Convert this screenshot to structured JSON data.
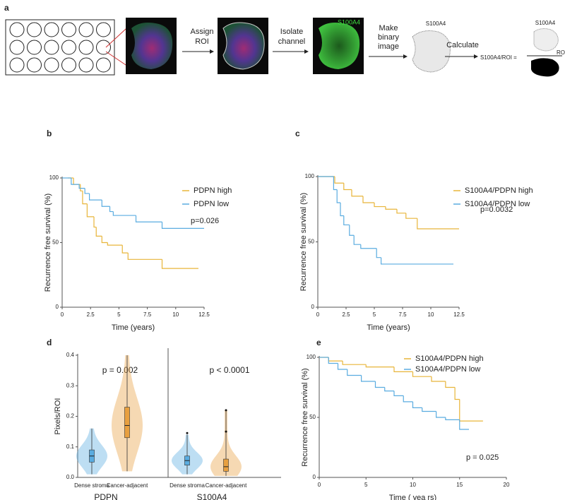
{
  "panel_a": {
    "label": "a",
    "steps": [
      [
        "Assign",
        "ROI"
      ],
      [
        "Isolate",
        "channel"
      ],
      [
        "Make",
        "binary",
        "image"
      ],
      [
        "Calculate"
      ]
    ],
    "channel_label": "S100A4",
    "binary_label": "S100A4",
    "ratio_label": "S100A4/ROI =",
    "numerator": "S100A4",
    "denominator": "ROI"
  },
  "chart_data": [
    {
      "type": "km",
      "panel": "b",
      "ylabel": "Recurrence free survival (%)",
      "xlabel": "Time (years)",
      "xlim": [
        0,
        12.5
      ],
      "xticks": [
        0,
        2.5,
        5,
        7.5,
        10,
        12.5
      ],
      "ylim": [
        0,
        100
      ],
      "yticks": [
        0,
        50,
        100
      ],
      "annotation": "p=0.026",
      "series": [
        {
          "name": "PDPN high",
          "color": "#e8b53a",
          "x": [
            0.5,
            1,
            1.6,
            1.8,
            2.2,
            2.8,
            3,
            3.5,
            4,
            5.3,
            5.8,
            8.8,
            12
          ],
          "values": [
            100,
            95,
            90,
            80,
            70,
            62,
            55,
            50,
            48,
            42,
            37,
            30,
            30
          ]
        },
        {
          "name": "PDPN low",
          "color": "#5aace0",
          "x": [
            0,
            0.8,
            1.5,
            2,
            2.4,
            3.5,
            4.2,
            4.5,
            6.5,
            8.8,
            12.5
          ],
          "values": [
            100,
            95,
            92,
            88,
            83,
            78,
            74,
            71,
            66,
            61,
            61
          ]
        }
      ]
    },
    {
      "type": "km",
      "panel": "c",
      "ylabel": "Recurrence free survival (%)",
      "xlabel": "Time (years)",
      "xlim": [
        0,
        12.5
      ],
      "xticks": [
        0,
        2.5,
        5,
        7.5,
        10,
        12.5
      ],
      "ylim": [
        0,
        100
      ],
      "yticks": [
        0,
        50,
        100
      ],
      "annotation": "p=0.0032",
      "series": [
        {
          "name": "S100A4/PDPN high",
          "color": "#e8b53a",
          "x": [
            0,
            1.5,
            2.3,
            3,
            4,
            5,
            6,
            7,
            7.8,
            8.8,
            12.5
          ],
          "values": [
            100,
            95,
            90,
            85,
            80,
            77,
            75,
            72,
            68,
            60,
            60
          ]
        },
        {
          "name": "S100A4/PDPN low",
          "color": "#5aace0",
          "x": [
            0,
            1.4,
            1.7,
            2,
            2.3,
            2.8,
            3.2,
            3.8,
            5.2,
            5.6,
            12
          ],
          "values": [
            100,
            90,
            80,
            70,
            63,
            55,
            48,
            45,
            38,
            33,
            33
          ]
        }
      ]
    },
    {
      "type": "violin",
      "panel": "d",
      "ylabel": "Pixels/ROI",
      "ylim": [
        0,
        0.4
      ],
      "yticks": [
        {
          "value": 0,
          "label": "0.0"
        },
        {
          "value": 0.1,
          "label": "0.1"
        },
        {
          "value": 0.2,
          "label": "0.2"
        },
        {
          "value": 0.3,
          "label": "0.3"
        },
        {
          "value": 0.4,
          "label": "0.4"
        }
      ],
      "groups": [
        "PDPN",
        "S100A4"
      ],
      "annotations": [
        "p =  0.002",
        "p < 0.0001"
      ],
      "categories": [
        "Dense stroma",
        "Cancer-adjacent",
        "Dense stroma",
        "Cancer-adjacent"
      ],
      "colors": [
        "#5aace0",
        "#e8a040",
        "#5aace0",
        "#e8a040"
      ],
      "min": [
        0.01,
        0.02,
        0.01,
        0.005
      ],
      "q1": [
        0.05,
        0.13,
        0.04,
        0.02
      ],
      "median": [
        0.07,
        0.17,
        0.055,
        0.035
      ],
      "q3": [
        0.09,
        0.23,
        0.07,
        0.06
      ],
      "max": [
        0.16,
        0.4,
        0.14,
        0.22
      ],
      "outliers": [
        [],
        [],
        [
          0.145
        ],
        [
          0.22,
          0.15
        ]
      ]
    },
    {
      "type": "km",
      "panel": "e",
      "ylabel": "Recurrence free survival (%)",
      "xlabel": "Time ( yea rs)",
      "xlim": [
        0,
        20
      ],
      "xticks": [
        0,
        5,
        10,
        15,
        20
      ],
      "ylim": [
        0,
        100
      ],
      "yticks": [
        0,
        50,
        100
      ],
      "annotation": "p = 0.025",
      "series": [
        {
          "name": "S100A4/PDPN high",
          "color": "#e8b53a",
          "x": [
            0,
            1,
            2.5,
            5,
            8,
            10,
            12,
            13.5,
            14.5,
            15,
            17.5
          ],
          "values": [
            100,
            97,
            94,
            92,
            88,
            84,
            80,
            75,
            65,
            47,
            47
          ]
        },
        {
          "name": "S100A4/PDPN low",
          "color": "#5aace0",
          "x": [
            0,
            1,
            2,
            3,
            4.5,
            6,
            7,
            8,
            9,
            10,
            11,
            12.5,
            13.5,
            15,
            16
          ],
          "values": [
            100,
            95,
            90,
            85,
            80,
            75,
            72,
            68,
            63,
            58,
            55,
            50,
            48,
            40,
            40
          ]
        }
      ]
    }
  ]
}
